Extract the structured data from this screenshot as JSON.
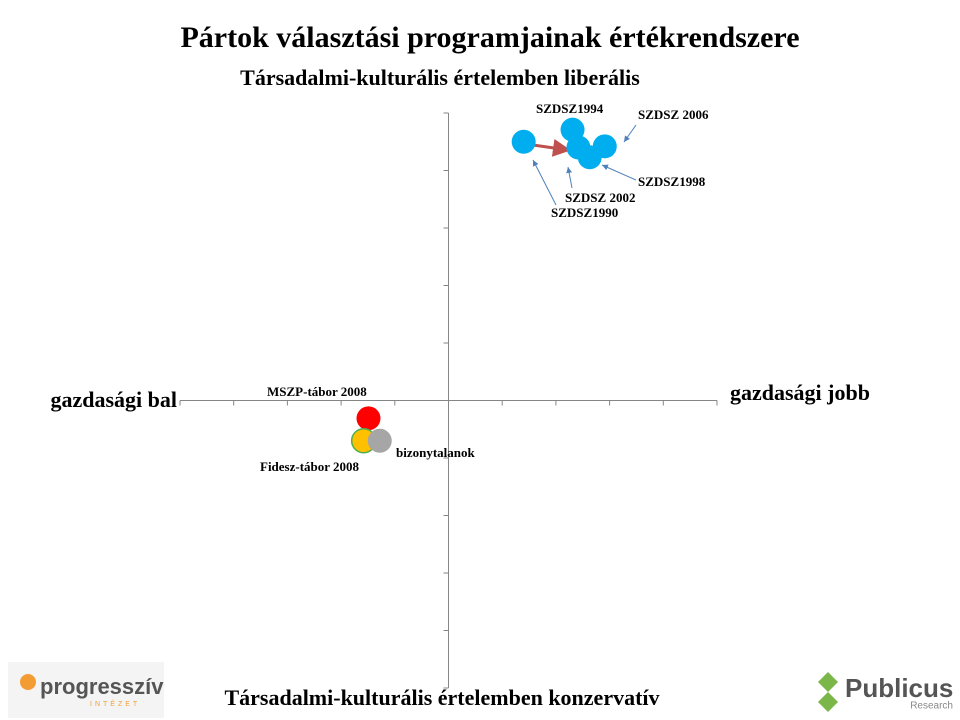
{
  "chart_data": {
    "type": "scatter",
    "title": "Pártok választási programjainak értékrendszere",
    "y_top_label": "Társadalmi-kulturális értelemben liberális",
    "y_bottom_label": "Társadalmi-kulturális értelemben konzervatív",
    "x_left_label": "gazdasági bal",
    "x_right_label": "gazdasági jobb",
    "xlim": [
      -5,
      5
    ],
    "ylim": [
      -5,
      5
    ],
    "xticks": [
      -5,
      -4,
      -3,
      -2,
      -1,
      0,
      1,
      2,
      3,
      4,
      5
    ],
    "yticks": [
      -5,
      -4,
      -3,
      -2,
      -1,
      0,
      1,
      2,
      3,
      4,
      5
    ],
    "points": [
      {
        "label": "SZDSZ1990",
        "x": 1.4,
        "y": 4.5,
        "color": "#00aeef"
      },
      {
        "label": "SZDSZ1994",
        "x": 2.31,
        "y": 4.71,
        "color": "#00aeef"
      },
      {
        "label": "SZDSZ 2002",
        "x": 2.42,
        "y": 4.4,
        "color": "#00aeef"
      },
      {
        "label": "SZDSZ1998",
        "x": 2.63,
        "y": 4.23,
        "color": "#00aeef"
      },
      {
        "label": "SZDSZ 2006",
        "x": 2.91,
        "y": 4.42,
        "color": "#00aeef"
      },
      {
        "label": "MSZP-tábor 2008",
        "x": -1.49,
        "y": -0.31,
        "color": "#ff0000"
      },
      {
        "label": "Fidesz-tábor 2008",
        "x": -1.58,
        "y": -0.7,
        "color": "#ffc000"
      },
      {
        "label": "bizonytalanok",
        "x": -1.28,
        "y": -0.7,
        "color": "#a6a6a6"
      }
    ]
  },
  "logos": {
    "left": "progresszív",
    "left_sub": "INTÉZET",
    "right": "Publicus",
    "right_sub": "Research"
  }
}
